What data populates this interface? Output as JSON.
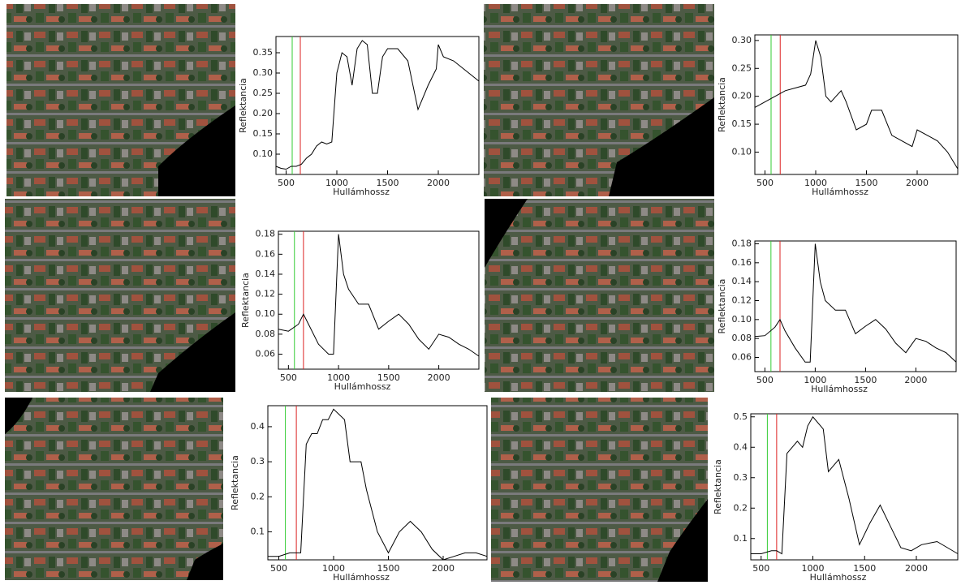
{
  "chart_data": [
    {
      "type": "line",
      "xlabel": "Hullámhossz",
      "ylabel": "Reflektancia",
      "x": [
        400,
        450,
        500,
        550,
        600,
        650,
        700,
        750,
        800,
        850,
        900,
        950,
        1000,
        1050,
        1100,
        1150,
        1200,
        1250,
        1300,
        1350,
        1400,
        1450,
        1500,
        1600,
        1700,
        1800,
        1900,
        1980,
        2000,
        2050,
        2150,
        2250,
        2350,
        2400
      ],
      "values": [
        0.07,
        0.065,
        0.063,
        0.07,
        0.07,
        0.075,
        0.09,
        0.1,
        0.12,
        0.13,
        0.125,
        0.13,
        0.3,
        0.35,
        0.34,
        0.27,
        0.36,
        0.38,
        0.37,
        0.25,
        0.25,
        0.34,
        0.36,
        0.36,
        0.33,
        0.21,
        0.27,
        0.31,
        0.37,
        0.34,
        0.33,
        0.31,
        0.29,
        0.28
      ],
      "color": "#000000",
      "xlim": [
        400,
        2400
      ],
      "ylim": [
        0.05,
        0.39
      ],
      "xticks": [
        500,
        1000,
        1500,
        2000
      ],
      "yticks": [
        {
          "value": 0.1,
          "label": "0.10"
        },
        0.15,
        {
          "value": 0.2,
          "label": "0.20"
        },
        0.25,
        {
          "value": 0.3,
          "label": "0.30"
        },
        0.35
      ],
      "reference_lines": [
        {
          "x": 560,
          "color": "#33cc33"
        },
        {
          "x": 640,
          "color": "#dd2222"
        }
      ]
    },
    {
      "type": "line",
      "xlabel": "Hullámhossz",
      "ylabel": "Reflektancia",
      "x": [
        400,
        500,
        600,
        700,
        800,
        900,
        950,
        1000,
        1050,
        1100,
        1150,
        1200,
        1250,
        1300,
        1400,
        1500,
        1550,
        1650,
        1750,
        1850,
        1950,
        2000,
        2100,
        2200,
        2300,
        2400
      ],
      "values": [
        0.18,
        0.19,
        0.2,
        0.21,
        0.215,
        0.22,
        0.24,
        0.3,
        0.27,
        0.2,
        0.19,
        0.2,
        0.21,
        0.19,
        0.14,
        0.15,
        0.175,
        0.175,
        0.13,
        0.12,
        0.11,
        0.14,
        0.13,
        0.12,
        0.1,
        0.07
      ],
      "color": "#000000",
      "xlim": [
        400,
        2400
      ],
      "ylim": [
        0.06,
        0.31
      ],
      "xticks": [
        500,
        1000,
        1500,
        2000
      ],
      "yticks": [
        {
          "value": 0.1,
          "label": "0.10"
        },
        0.15,
        {
          "value": 0.2,
          "label": "0.20"
        },
        0.25,
        {
          "value": 0.3,
          "label": "0.30"
        }
      ],
      "reference_lines": [
        {
          "x": 560,
          "color": "#33cc33"
        },
        {
          "x": 650,
          "color": "#dd2222"
        }
      ]
    },
    {
      "type": "line",
      "xlabel": "Hullámhossz",
      "ylabel": "Reflektancia",
      "x": [
        400,
        500,
        600,
        650,
        700,
        800,
        900,
        950,
        1000,
        1050,
        1100,
        1200,
        1300,
        1400,
        1500,
        1600,
        1700,
        1800,
        1900,
        2000,
        2100,
        2200,
        2300,
        2400
      ],
      "values": [
        0.085,
        0.083,
        0.09,
        0.1,
        0.09,
        0.07,
        0.06,
        0.06,
        0.18,
        0.14,
        0.125,
        0.11,
        0.11,
        0.085,
        0.093,
        0.1,
        0.09,
        0.075,
        0.065,
        0.08,
        0.077,
        0.07,
        0.065,
        0.058
      ],
      "color": "#000000",
      "xlim": [
        400,
        2400
      ],
      "ylim": [
        0.045,
        0.183
      ],
      "xticks": [
        500,
        1000,
        1500,
        2000
      ],
      "yticks": [
        0.06,
        0.08,
        {
          "value": 0.1,
          "label": "0.10"
        },
        0.12,
        0.14,
        0.16,
        0.18
      ],
      "reference_lines": [
        {
          "x": 560,
          "color": "#33cc33"
        },
        {
          "x": 650,
          "color": "#dd2222"
        }
      ]
    },
    {
      "type": "line",
      "xlabel": "Hullámhossz",
      "ylabel": "Reflektancia",
      "x": [
        400,
        500,
        600,
        650,
        700,
        800,
        900,
        950,
        1000,
        1050,
        1100,
        1200,
        1300,
        1400,
        1500,
        1600,
        1700,
        1800,
        1900,
        2000,
        2100,
        2200,
        2300,
        2400
      ],
      "values": [
        0.082,
        0.083,
        0.092,
        0.1,
        0.088,
        0.07,
        0.055,
        0.055,
        0.18,
        0.14,
        0.12,
        0.11,
        0.11,
        0.085,
        0.093,
        0.1,
        0.09,
        0.075,
        0.065,
        0.08,
        0.077,
        0.07,
        0.065,
        0.055
      ],
      "color": "#000000",
      "xlim": [
        400,
        2400
      ],
      "ylim": [
        0.045,
        0.183
      ],
      "xticks": [
        500,
        1000,
        1500,
        2000
      ],
      "yticks": [
        0.06,
        0.08,
        {
          "value": 0.1,
          "label": "0.10"
        },
        0.12,
        0.14,
        0.16,
        0.18
      ],
      "reference_lines": [
        {
          "x": 560,
          "color": "#33cc33"
        },
        {
          "x": 650,
          "color": "#dd2222"
        }
      ]
    },
    {
      "type": "line",
      "xlabel": "Hullámhossz",
      "ylabel": "Reflektancia",
      "x": [
        400,
        500,
        600,
        700,
        750,
        800,
        850,
        900,
        950,
        1000,
        1100,
        1150,
        1250,
        1300,
        1400,
        1500,
        1600,
        1700,
        1800,
        1900,
        2000,
        2100,
        2200,
        2300,
        2400
      ],
      "values": [
        0.03,
        0.03,
        0.04,
        0.04,
        0.35,
        0.38,
        0.38,
        0.42,
        0.42,
        0.45,
        0.42,
        0.3,
        0.3,
        0.22,
        0.1,
        0.04,
        0.1,
        0.13,
        0.1,
        0.05,
        0.02,
        0.03,
        0.04,
        0.04,
        0.03
      ],
      "color": "#000000",
      "xlim": [
        400,
        2400
      ],
      "ylim": [
        0.02,
        0.46
      ],
      "xticks": [
        500,
        1000,
        1500,
        2000
      ],
      "yticks": [
        0.1,
        0.2,
        0.3,
        0.4
      ],
      "reference_lines": [
        {
          "x": 560,
          "color": "#33cc33"
        },
        {
          "x": 660,
          "color": "#dd2222"
        }
      ]
    },
    {
      "type": "line",
      "xlabel": "Hullámhossz",
      "ylabel": "Reflektancia",
      "x": [
        400,
        500,
        600,
        650,
        700,
        750,
        800,
        850,
        900,
        950,
        1000,
        1100,
        1150,
        1250,
        1350,
        1450,
        1550,
        1650,
        1750,
        1850,
        1950,
        2050,
        2200,
        2300,
        2400
      ],
      "values": [
        0.05,
        0.05,
        0.06,
        0.06,
        0.05,
        0.38,
        0.4,
        0.42,
        0.4,
        0.47,
        0.5,
        0.46,
        0.32,
        0.36,
        0.23,
        0.08,
        0.15,
        0.21,
        0.14,
        0.07,
        0.06,
        0.08,
        0.09,
        0.07,
        0.05
      ],
      "color": "#000000",
      "xlim": [
        400,
        2400
      ],
      "ylim": [
        0.03,
        0.51
      ],
      "xticks": [
        500,
        1000,
        1500,
        2000
      ],
      "yticks": [
        0.1,
        0.2,
        0.3,
        0.4,
        0.5
      ],
      "reference_lines": [
        {
          "x": 560,
          "color": "#33cc33"
        },
        {
          "x": 650,
          "color": "#dd2222"
        }
      ]
    }
  ]
}
